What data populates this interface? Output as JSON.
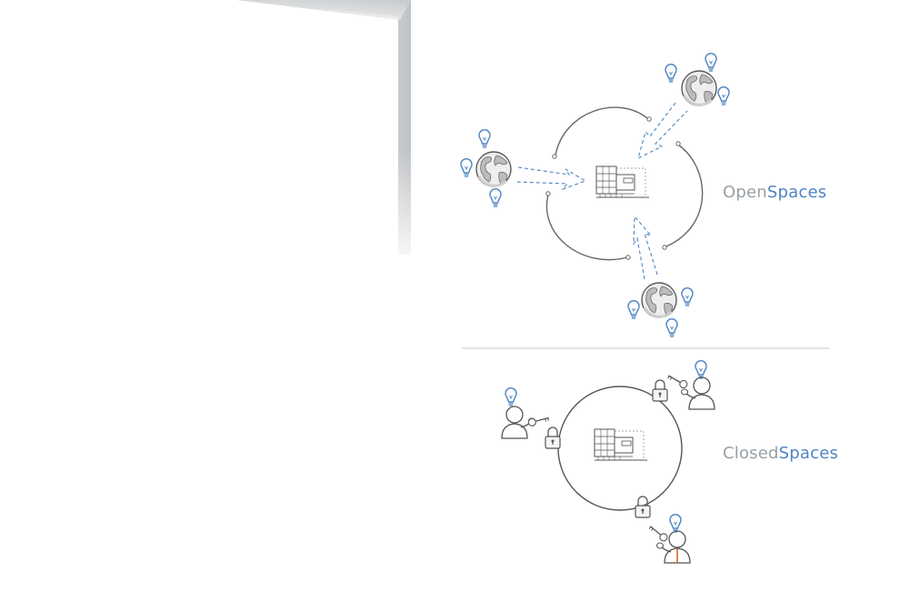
{
  "open_spaces": {
    "label_prefix": "Open",
    "label_suffix": "Spaces"
  },
  "closed_spaces": {
    "label_prefix": "Closed",
    "label_suffix": "Spaces"
  },
  "colors": {
    "accent_blue": "#4f84c4",
    "label_gray": "#9aa0a6",
    "line_gray": "#555555",
    "divider": "#c8c8c8"
  },
  "icons": {
    "idea": "lightbulb-icon",
    "world": "globe-icon",
    "institution": "building-icon",
    "access": "key-icon",
    "restriction": "padlock-icon",
    "person": "person-icon"
  }
}
